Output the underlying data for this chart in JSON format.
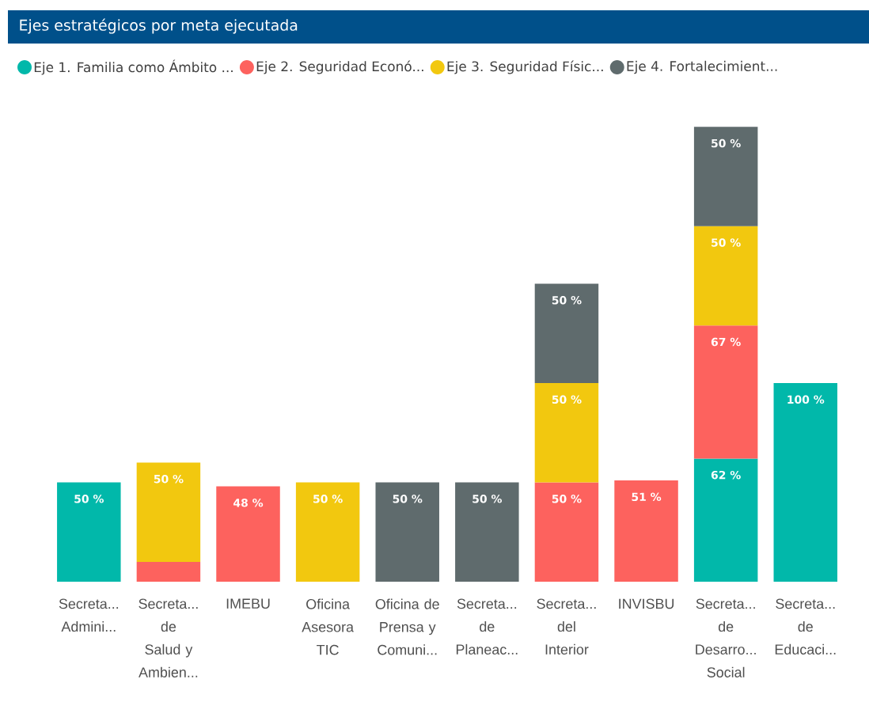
{
  "chart_data": {
    "type": "bar",
    "title": "Ejes estratégicos por meta ejecutada",
    "stacked": true,
    "legend": "top left",
    "categories": [
      "Secreta... Admini...",
      "Secreta... de Salud y Ambien...",
      "IMEBU",
      "Oficina Asesora TIC",
      "Oficina de Prensa y Comuni...",
      "Secreta... de Planeac...",
      "Secreta... del Interior",
      "INVISBU",
      "Secreta... de Desarro... Social",
      "Secreta... de Educaci..."
    ],
    "series": [
      {
        "name": "Eje 1. Familia como Ámbito ...",
        "color": "#01b8aa",
        "values": [
          50,
          null,
          null,
          null,
          null,
          null,
          null,
          null,
          62,
          100
        ],
        "value_labels": [
          "50 %",
          null,
          null,
          null,
          null,
          null,
          null,
          null,
          "62 %",
          "100 %"
        ]
      },
      {
        "name": "Eje 2. Seguridad Econó...",
        "color": "#fd625e",
        "values": [
          null,
          10,
          48,
          null,
          null,
          null,
          50,
          51,
          67,
          null
        ],
        "value_labels": [
          null,
          null,
          "48 %",
          null,
          null,
          null,
          "50 %",
          "51 %",
          "67 %",
          null
        ]
      },
      {
        "name": "Eje 3. Seguridad Físic...",
        "color": "#f2c80f",
        "values": [
          null,
          50,
          null,
          50,
          null,
          null,
          50,
          null,
          50,
          null
        ],
        "value_labels": [
          null,
          "50 %",
          null,
          "50 %",
          null,
          null,
          "50 %",
          null,
          "50 %",
          null
        ]
      },
      {
        "name": "Eje 4. Fortalecimient...",
        "color": "#5f6b6d",
        "values": [
          null,
          null,
          null,
          null,
          50,
          50,
          50,
          null,
          50,
          null
        ],
        "value_labels": [
          null,
          null,
          null,
          null,
          "50 %",
          "50 %",
          "50 %",
          null,
          "50 %",
          null
        ]
      }
    ]
  }
}
